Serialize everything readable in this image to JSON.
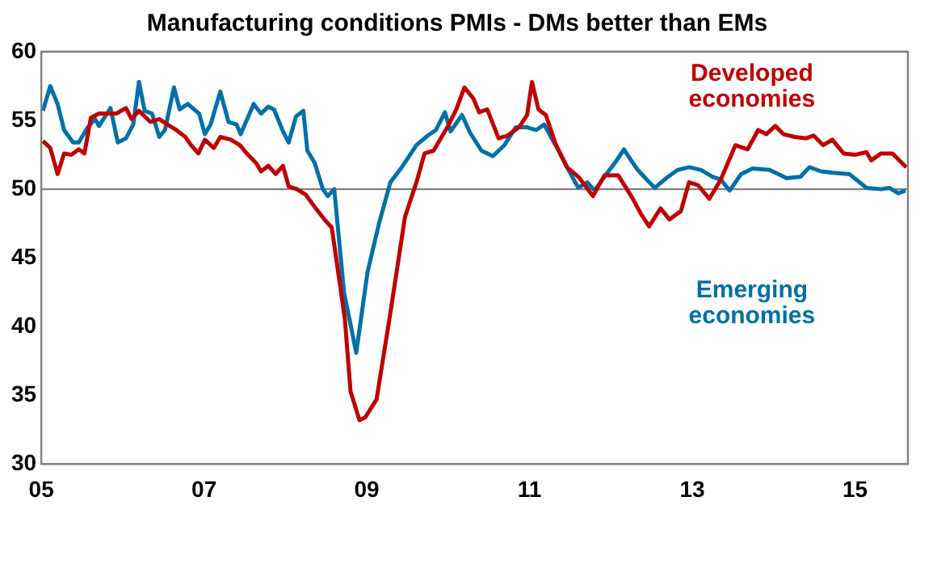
{
  "chart_data": {
    "type": "line",
    "title": "Manufacturing conditions PMIs - DMs better than EMs",
    "xlim": [
      2005,
      2015.65
    ],
    "xticks": [
      {
        "value": 2005,
        "label": "05"
      },
      {
        "value": 2007,
        "label": "07"
      },
      {
        "value": 2009,
        "label": "09"
      },
      {
        "value": 2011,
        "label": "11"
      },
      {
        "value": 2013,
        "label": "13"
      },
      {
        "value": 2015,
        "label": "15"
      }
    ],
    "ylim": [
      30,
      60
    ],
    "yticks": [
      30,
      35,
      40,
      45,
      50,
      55,
      60
    ],
    "ref_lines": [
      {
        "axis": "y",
        "value": 50,
        "color": "#808080"
      }
    ],
    "legend": false,
    "grid": false,
    "series": [
      {
        "name": "Developed economies",
        "color": "#c00000",
        "x": [
          2005.02,
          2005.11,
          2005.2,
          2005.28,
          2005.37,
          2005.46,
          2005.53,
          2005.61,
          2005.71,
          2005.81,
          2005.92,
          2006.04,
          2006.11,
          2006.2,
          2006.34,
          2006.45,
          2006.55,
          2006.66,
          2006.77,
          2006.84,
          2006.93,
          2007.01,
          2007.12,
          2007.2,
          2007.33,
          2007.44,
          2007.54,
          2007.64,
          2007.7,
          2007.79,
          2007.88,
          2007.97,
          2008.04,
          2008.14,
          2008.25,
          2008.36,
          2008.48,
          2008.57,
          2008.73,
          2008.8,
          2008.91,
          2008.98,
          2009.12,
          2009.29,
          2009.47,
          2009.61,
          2009.71,
          2009.82,
          2009.99,
          2010.1,
          2010.2,
          2010.31,
          2010.38,
          2010.48,
          2010.62,
          2010.73,
          2010.87,
          2010.97,
          2011.03,
          2011.11,
          2011.2,
          2011.32,
          2011.46,
          2011.6,
          2011.78,
          2011.92,
          2012.09,
          2012.26,
          2012.37,
          2012.47,
          2012.61,
          2012.72,
          2012.86,
          2012.96,
          2013.07,
          2013.21,
          2013.35,
          2013.53,
          2013.68,
          2013.81,
          2013.91,
          2014.02,
          2014.12,
          2014.26,
          2014.4,
          2014.49,
          2014.61,
          2014.72,
          2014.86,
          2015,
          2015.14,
          2015.2,
          2015.32,
          2015.46,
          2015.63
        ],
        "values": [
          53.5,
          53.0,
          51.1,
          52.6,
          52.5,
          52.9,
          52.6,
          55.2,
          55.5,
          55.5,
          55.5,
          55.9,
          55.1,
          55.7,
          54.9,
          55.1,
          54.7,
          54.3,
          53.8,
          53.2,
          52.6,
          53.6,
          53.0,
          53.8,
          53.6,
          53.2,
          52.5,
          51.9,
          51.3,
          51.7,
          51.1,
          51.7,
          50.2,
          50.0,
          49.6,
          48.7,
          47.8,
          47.2,
          40.6,
          35.3,
          33.2,
          33.4,
          34.7,
          41.0,
          48.0,
          50.5,
          52.6,
          52.8,
          54.5,
          55.8,
          57.4,
          56.6,
          55.6,
          55.8,
          53.7,
          53.9,
          54.5,
          55.4,
          57.8,
          55.8,
          55.4,
          53.3,
          51.6,
          50.9,
          49.5,
          51.0,
          51.0,
          49.4,
          48.2,
          47.3,
          48.6,
          47.8,
          48.4,
          50.5,
          50.3,
          49.3,
          50.7,
          53.2,
          52.9,
          54.3,
          54.0,
          54.6,
          54.0,
          53.8,
          53.7,
          53.9,
          53.2,
          53.6,
          52.6,
          52.5,
          52.7,
          52.1,
          52.6,
          52.6,
          51.6
        ]
      },
      {
        "name": "Emerging economies",
        "color": "#0070a8",
        "x": [
          2005.02,
          2005.11,
          2005.2,
          2005.28,
          2005.39,
          2005.46,
          2005.57,
          2005.66,
          2005.71,
          2005.85,
          2005.94,
          2006.04,
          2006.13,
          2006.2,
          2006.27,
          2006.36,
          2006.45,
          2006.52,
          2006.63,
          2006.7,
          2006.8,
          2006.94,
          2007.01,
          2007.08,
          2007.2,
          2007.3,
          2007.4,
          2007.45,
          2007.61,
          2007.7,
          2007.79,
          2007.86,
          2007.97,
          2008.04,
          2008.13,
          2008.22,
          2008.27,
          2008.36,
          2008.46,
          2008.52,
          2008.6,
          2008.72,
          2008.87,
          2009.01,
          2009.15,
          2009.29,
          2009.43,
          2009.61,
          2009.75,
          2009.85,
          2009.96,
          2010.03,
          2010.17,
          2010.27,
          2010.41,
          2010.55,
          2010.69,
          2010.83,
          2010.97,
          2011.08,
          2011.18,
          2011.32,
          2011.46,
          2011.6,
          2011.71,
          2011.8,
          2011.92,
          2012.06,
          2012.16,
          2012.26,
          2012.33,
          2012.44,
          2012.54,
          2012.68,
          2012.82,
          2012.96,
          2013.11,
          2013.25,
          2013.35,
          2013.46,
          2013.6,
          2013.74,
          2013.95,
          2014.16,
          2014.33,
          2014.44,
          2014.58,
          2014.72,
          2014.93,
          2015.14,
          2015.32,
          2015.42,
          2015.53,
          2015.62
        ],
        "values": [
          55.7,
          57.5,
          56.2,
          54.3,
          53.4,
          53.4,
          54.5,
          55.1,
          54.6,
          55.9,
          53.4,
          53.7,
          54.7,
          57.8,
          55.7,
          55.5,
          53.8,
          54.3,
          57.4,
          55.8,
          56.2,
          55.5,
          54.0,
          54.7,
          57.1,
          54.9,
          54.7,
          54.0,
          56.2,
          55.5,
          56.0,
          55.8,
          54.2,
          53.4,
          55.3,
          55.7,
          52.8,
          51.9,
          50.0,
          49.5,
          50.0,
          42.5,
          38.1,
          44.0,
          47.5,
          50.5,
          51.6,
          53.2,
          53.9,
          54.3,
          55.6,
          54.2,
          55.4,
          54.1,
          52.8,
          52.4,
          53.2,
          54.5,
          54.5,
          54.3,
          54.7,
          53.2,
          51.6,
          50.1,
          50.5,
          49.9,
          50.9,
          52.0,
          52.9,
          52.0,
          51.4,
          50.7,
          50.1,
          50.8,
          51.4,
          51.6,
          51.4,
          50.9,
          50.7,
          49.9,
          51.1,
          51.5,
          51.4,
          50.8,
          50.9,
          51.6,
          51.3,
          51.2,
          51.1,
          50.1,
          50.0,
          50.1,
          49.7,
          49.9
        ]
      }
    ]
  }
}
